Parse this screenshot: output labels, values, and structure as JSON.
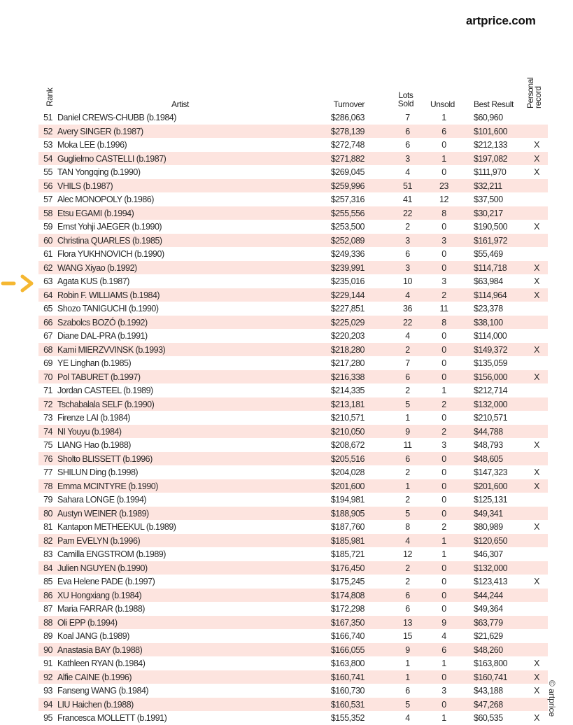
{
  "logo": "artprice.com",
  "copyright": "© artprice",
  "accent_color": "#f5b731",
  "stripe_color": "#fde4df",
  "headers": {
    "rank": "Rank",
    "artist": "Artist",
    "turnover": "Turnover",
    "lots_sold_1": "Lots",
    "lots_sold_2": "Sold",
    "unsold": "Unsold",
    "best_result": "Best Result",
    "record_1": "Personal",
    "record_2": "record"
  },
  "highlight_arrow_rank": "63",
  "rows": [
    [
      "51",
      "Daniel CREWS-CHUBB (b.1984)",
      "$286,063",
      "7",
      "1",
      "$60,960",
      ""
    ],
    [
      "52",
      "Avery SINGER (b.1987)",
      "$278,139",
      "6",
      "6",
      "$101,600",
      ""
    ],
    [
      "53",
      "Moka LEE (b.1996)",
      "$272,748",
      "6",
      "0",
      "$212,133",
      "X"
    ],
    [
      "54",
      "Guglielmo CASTELLI (b.1987)",
      "$271,882",
      "3",
      "1",
      "$197,082",
      "X"
    ],
    [
      "55",
      "TAN Yongqing (b.1990)",
      "$269,045",
      "4",
      "0",
      "$111,970",
      "X"
    ],
    [
      "56",
      "VHILS (b.1987)",
      "$259,996",
      "51",
      "23",
      "$32,211",
      ""
    ],
    [
      "57",
      "Alec MONOPOLY (b.1986)",
      "$257,316",
      "41",
      "12",
      "$37,500",
      ""
    ],
    [
      "58",
      "Etsu EGAMI (b.1994)",
      "$255,556",
      "22",
      "8",
      "$30,217",
      ""
    ],
    [
      "59",
      "Ernst Yohji JAEGER (b.1990)",
      "$253,500",
      "2",
      "0",
      "$190,500",
      "X"
    ],
    [
      "60",
      "Christina QUARLES (b.1985)",
      "$252,089",
      "3",
      "3",
      "$161,972",
      ""
    ],
    [
      "61",
      "Flora YUKHNOVICH (b.1990)",
      "$249,336",
      "6",
      "0",
      "$55,469",
      ""
    ],
    [
      "62",
      "WANG Xiyao (b.1992)",
      "$239,991",
      "3",
      "0",
      "$114,718",
      "X"
    ],
    [
      "63",
      "Agata KUS (b.1987)",
      "$235,016",
      "10",
      "3",
      "$63,984",
      "X"
    ],
    [
      "64",
      "Robin F. WILLIAMS (b.1984)",
      "$229,144",
      "4",
      "2",
      "$114,964",
      "X"
    ],
    [
      "65",
      "Shozo TANIGUCHI (b.1990)",
      "$227,851",
      "36",
      "11",
      "$23,378",
      ""
    ],
    [
      "66",
      "Szabolcs BOZÓ (b.1992)",
      "$225,029",
      "22",
      "8",
      "$38,100",
      ""
    ],
    [
      "67",
      "Diane DAL-PRA (b.1991)",
      "$220,203",
      "4",
      "0",
      "$114,000",
      ""
    ],
    [
      "68",
      "Kami MIERZVVINSK (b.1993)",
      "$218,280",
      "2",
      "0",
      "$149,372",
      "X"
    ],
    [
      "69",
      "YE Linghan (b.1985)",
      "$217,280",
      "7",
      "0",
      "$135,059",
      ""
    ],
    [
      "70",
      "Pol TABURET (b.1997)",
      "$216,338",
      "6",
      "0",
      "$156,000",
      "X"
    ],
    [
      "71",
      "Jordan CASTEEL (b.1989)",
      "$214,335",
      "2",
      "1",
      "$212,714",
      ""
    ],
    [
      "72",
      "Tschabalala SELF (b.1990)",
      "$213,181",
      "5",
      "2",
      "$132,000",
      ""
    ],
    [
      "73",
      "Firenze LAI (b.1984)",
      "$210,571",
      "1",
      "0",
      "$210,571",
      ""
    ],
    [
      "74",
      "NI Youyu (b.1984)",
      "$210,050",
      "9",
      "2",
      "$44,788",
      ""
    ],
    [
      "75",
      "LIANG Hao (b.1988)",
      "$208,672",
      "11",
      "3",
      "$48,793",
      "X"
    ],
    [
      "76",
      "Sholto BLISSETT (b.1996)",
      "$205,516",
      "6",
      "0",
      "$48,605",
      ""
    ],
    [
      "77",
      "SHILUN Ding (b.1998)",
      "$204,028",
      "2",
      "0",
      "$147,323",
      "X"
    ],
    [
      "78",
      "Emma MCINTYRE (b.1990)",
      "$201,600",
      "1",
      "0",
      "$201,600",
      "X"
    ],
    [
      "79",
      "Sahara LONGE (b.1994)",
      "$194,981",
      "2",
      "0",
      "$125,131",
      ""
    ],
    [
      "80",
      "Austyn WEINER (b.1989)",
      "$188,905",
      "5",
      "0",
      "$49,341",
      ""
    ],
    [
      "81",
      "Kantapon METHEEKUL (b.1989)",
      "$187,760",
      "8",
      "2",
      "$80,989",
      "X"
    ],
    [
      "82",
      "Pam EVELYN (b.1996)",
      "$185,981",
      "4",
      "1",
      "$120,650",
      ""
    ],
    [
      "83",
      "Camilla ENGSTROM (b.1989)",
      "$185,721",
      "12",
      "1",
      "$46,307",
      ""
    ],
    [
      "84",
      "Julien NGUYEN (b.1990)",
      "$176,450",
      "2",
      "0",
      "$132,000",
      ""
    ],
    [
      "85",
      "Eva Helene PADE (b.1997)",
      "$175,245",
      "2",
      "0",
      "$123,413",
      "X"
    ],
    [
      "86",
      "XU Hongxiang (b.1984)",
      "$174,808",
      "6",
      "0",
      "$44,244",
      ""
    ],
    [
      "87",
      "Maria FARRAR (b.1988)",
      "$172,298",
      "6",
      "0",
      "$49,364",
      ""
    ],
    [
      "88",
      "Oli EPP (b.1994)",
      "$167,350",
      "13",
      "9",
      "$63,779",
      ""
    ],
    [
      "89",
      "Koal JANG (b.1989)",
      "$166,740",
      "15",
      "4",
      "$21,629",
      ""
    ],
    [
      "90",
      "Anastasia BAY (b.1988)",
      "$166,055",
      "9",
      "6",
      "$48,260",
      ""
    ],
    [
      "91",
      "Kathleen RYAN (b.1984)",
      "$163,800",
      "1",
      "1",
      "$163,800",
      "X"
    ],
    [
      "92",
      "Alfie CAINE (b.1996)",
      "$160,741",
      "1",
      "0",
      "$160,741",
      "X"
    ],
    [
      "93",
      "Fanseng WANG (b.1984)",
      "$160,730",
      "6",
      "3",
      "$43,188",
      "X"
    ],
    [
      "94",
      "LIU Haichen (b.1988)",
      "$160,531",
      "5",
      "0",
      "$47,268",
      ""
    ],
    [
      "95",
      "Francesca MOLLETT (b.1991)",
      "$155,352",
      "4",
      "1",
      "$60,535",
      "X"
    ]
  ]
}
